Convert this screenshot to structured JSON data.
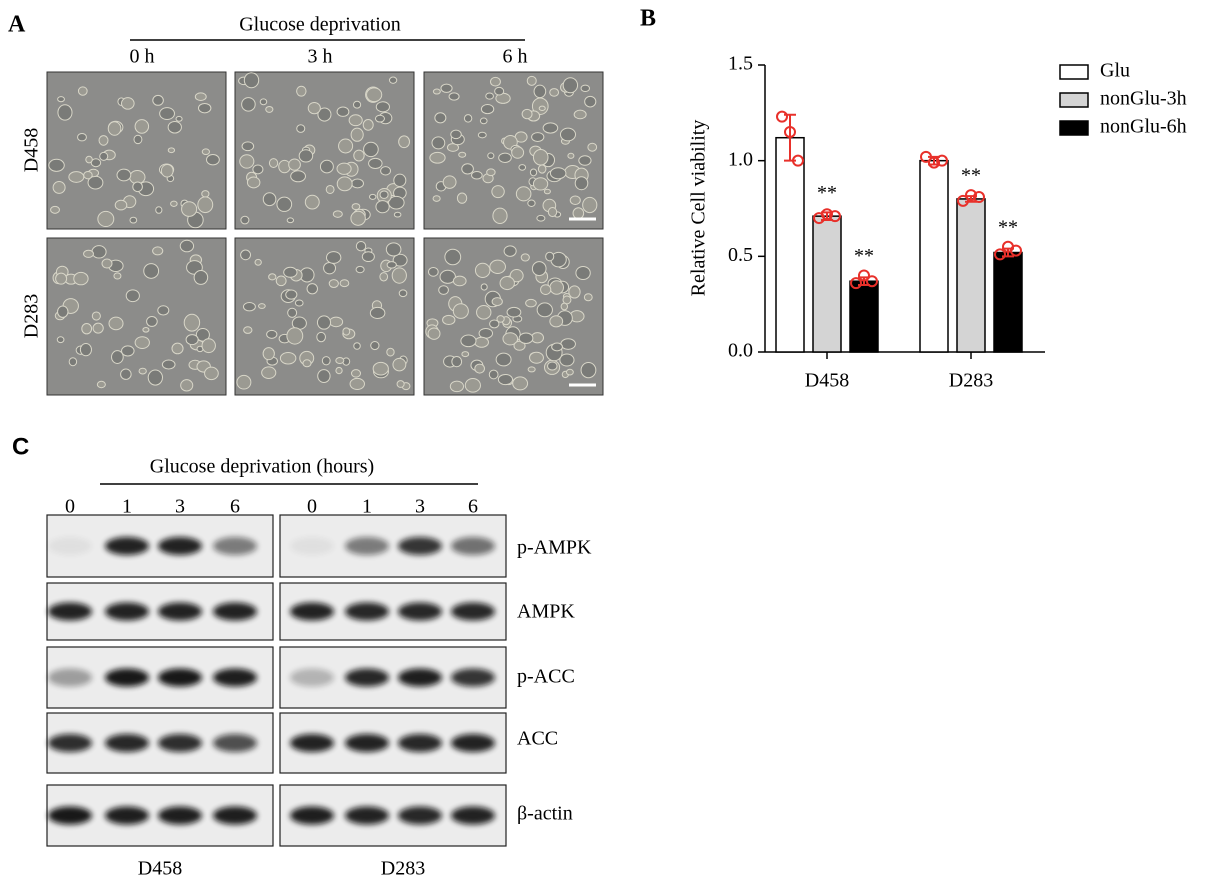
{
  "panel_a": {
    "label": "A",
    "title": "Glucose deprivation",
    "timepoints": [
      "0 h",
      "3 h",
      "6 h"
    ],
    "cell_lines": [
      "D458",
      "D283"
    ]
  },
  "chart_data": {
    "panel_label": "B",
    "type": "bar",
    "y_label": "Relative Cell viability",
    "categories": [
      "D458",
      "D283"
    ],
    "series": [
      {
        "name": "Glu",
        "color": "#ffffff",
        "values": [
          1.12,
          1.0
        ],
        "errors": [
          0.12,
          0.02
        ],
        "points": [
          [
            1.23,
            1.15,
            1.0
          ],
          [
            1.02,
            0.99,
            1.0
          ]
        ]
      },
      {
        "name": "nonGlu-3h",
        "color": "#d4d4d4",
        "values": [
          0.71,
          0.8
        ],
        "errors": [
          0.02,
          0.015
        ],
        "points": [
          [
            0.7,
            0.72,
            0.71
          ],
          [
            0.79,
            0.82,
            0.81
          ]
        ],
        "significance": [
          "**",
          "**"
        ]
      },
      {
        "name": "nonGlu-6h",
        "color": "#000000",
        "values": [
          0.37,
          0.52
        ],
        "errors": [
          0.02,
          0.02
        ],
        "points": [
          [
            0.36,
            0.4,
            0.37
          ],
          [
            0.51,
            0.55,
            0.53
          ]
        ],
        "significance": [
          "**",
          "**"
        ]
      }
    ],
    "point_color": "#e8302a",
    "ylim": [
      0,
      1.5
    ],
    "yticks": [
      {
        "value": 0,
        "label": "0.0"
      },
      {
        "value": 0.5,
        "label": "0.5"
      },
      {
        "value": 1.0,
        "label": "1.0"
      },
      {
        "value": 1.5,
        "label": "1.5"
      }
    ],
    "legend": "upper right"
  },
  "panel_c": {
    "label": "C",
    "title": "Glucose deprivation (hours)",
    "lanes": [
      "0",
      "1",
      "3",
      "6"
    ],
    "proteins": [
      "p-AMPK",
      "AMPK",
      "p-ACC",
      "ACC",
      "β-actin"
    ],
    "cell_lines": [
      "D458",
      "D283"
    ]
  }
}
